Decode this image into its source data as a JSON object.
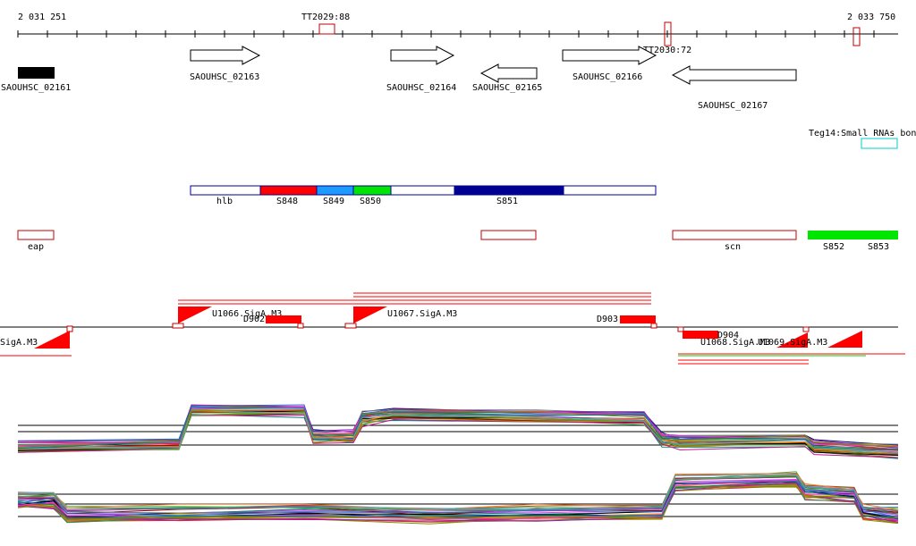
{
  "ruler": {
    "start_label": "2 031 251",
    "end_label": "2 033 750",
    "terminators": [
      {
        "id": "tt2029",
        "label": "TT2029:88"
      },
      {
        "id": "tt2030",
        "label": "TT2030:72"
      },
      {
        "id": "tt-right",
        "label": ""
      }
    ]
  },
  "genes": [
    {
      "id": "saouhsc-02161",
      "label": "SAOUHSC_02161",
      "strand": "none"
    },
    {
      "id": "saouhsc-02163",
      "label": "SAOUHSC_02163",
      "strand": "+"
    },
    {
      "id": "saouhsc-02164",
      "label": "SAOUHSC_02164",
      "strand": "+"
    },
    {
      "id": "saouhsc-02165",
      "label": "SAOUHSC_02165",
      "strand": "-"
    },
    {
      "id": "saouhsc-02166",
      "label": "SAOUHSC_02166",
      "strand": "+"
    },
    {
      "id": "saouhsc-02167",
      "label": "SAOUHSC_02167",
      "strand": "-"
    }
  ],
  "small_rna": {
    "label": "Teg14:Small RNAs bon"
  },
  "segments": {
    "hlb": "hlb",
    "s848": "S848",
    "s849": "S849",
    "s850": "S850",
    "s851": "S851"
  },
  "regions": {
    "eap": "eap",
    "scn": "scn",
    "s852": "S852",
    "s853": "S853"
  },
  "promoters": {
    "u1066": "U1066.SigA.M3",
    "u1067": "U1067.SigA.M3",
    "u1068": "U1068.SigA.M3",
    "u1069": "U1069.SigA.M3",
    "left": "SigA.M3",
    "d902": "D902",
    "d903": "D903",
    "d904": "D904"
  },
  "colors": {
    "s848": "#ff0000",
    "s849": "#1e9bff",
    "s850": "#00e600",
    "s851": "#000090",
    "s852": "#00e600",
    "promoter": "#ff0000",
    "small_rna": "#00cccc",
    "gene_fill": "#000000"
  }
}
